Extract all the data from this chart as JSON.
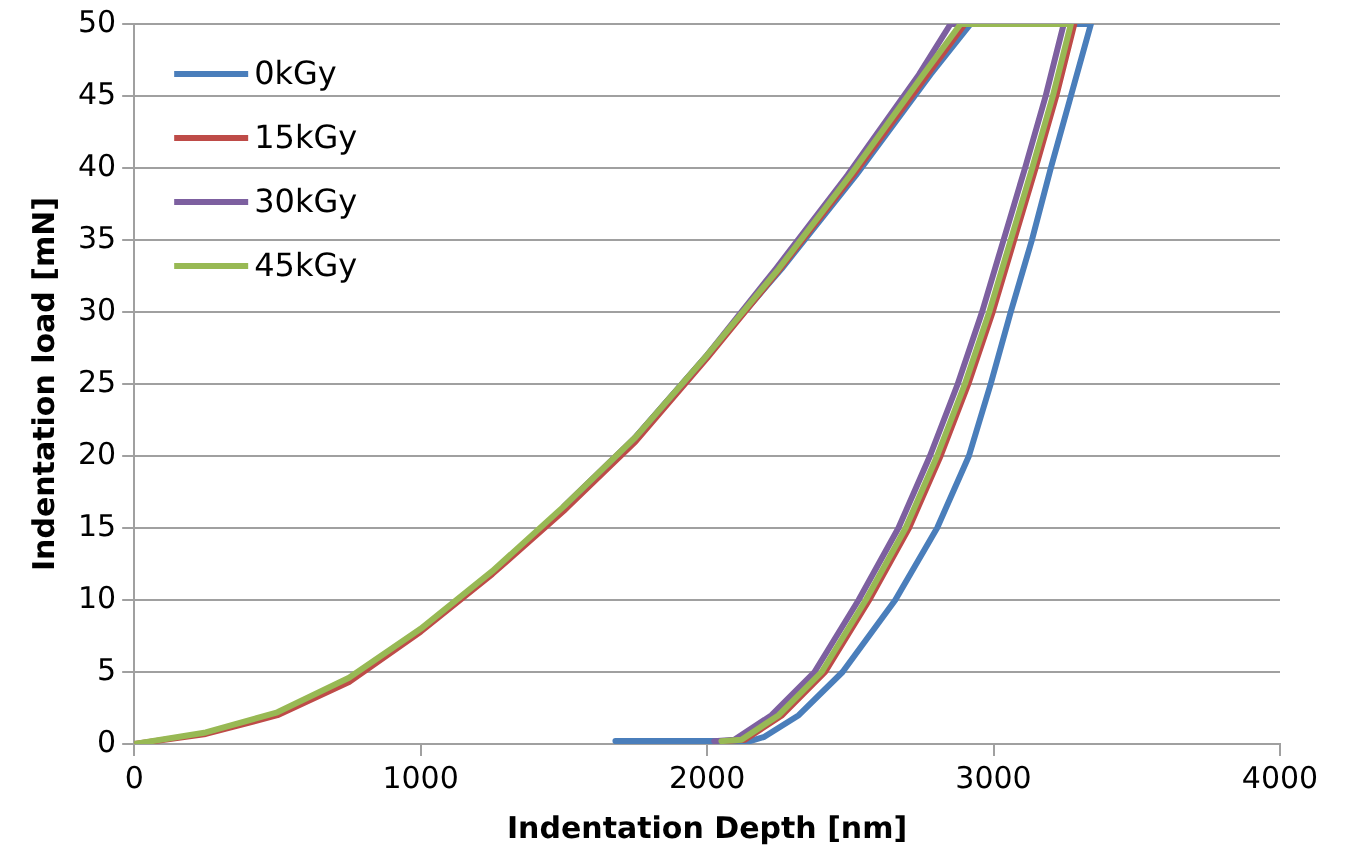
{
  "chart_data": {
    "type": "line",
    "xlabel": "Indentation Depth [nm]",
    "ylabel": "Indentation load [mN]",
    "xlim": [
      0,
      4000
    ],
    "xticks": [
      0,
      1000,
      2000,
      3000,
      4000
    ],
    "ylim": [
      0,
      50
    ],
    "yticks": [
      0,
      5,
      10,
      15,
      20,
      25,
      30,
      35,
      40,
      45,
      50
    ],
    "grid": "y",
    "legend": "top left",
    "marker": "none",
    "line_style": "solid",
    "series": [
      {
        "name": "0kGy",
        "color": "#4a7ebb",
        "x": [
          1750,
          2000,
          2260,
          2520,
          2780,
          2920,
          3340,
          3270,
          3200,
          3134,
          3060,
          2990,
          2914,
          2803,
          2657,
          2473,
          2320,
          2200,
          2150,
          1680
        ],
        "values": [
          21.3,
          27,
          33,
          39.5,
          46.5,
          50,
          50,
          45,
          40,
          35,
          30,
          25,
          20,
          15,
          10,
          5,
          2,
          0.5,
          0.2,
          0.2
        ]
      },
      {
        "name": "15kGy",
        "color": "#be4b48",
        "x": [
          0,
          250,
          500,
          750,
          1000,
          1250,
          1500,
          1750,
          2000,
          2255,
          2510,
          2770,
          2900,
          3282,
          3219,
          3147,
          3072,
          2997,
          2912,
          2815,
          2705,
          2566,
          2412,
          2262,
          2132,
          2062
        ],
        "values": [
          0,
          0.7,
          2,
          4.3,
          7.8,
          11.8,
          16.2,
          21,
          26.8,
          33,
          39.5,
          46.5,
          50,
          50,
          45,
          40,
          35,
          30,
          25,
          20,
          15,
          10,
          5,
          2,
          0.3,
          0.2
        ]
      },
      {
        "name": "30kGy",
        "color": "#7d60a0",
        "x": [
          1500,
          1750,
          2000,
          2240,
          2490,
          2740,
          2850,
          3245,
          3182,
          3110,
          3035,
          2960,
          2875,
          2778,
          2668,
          2529,
          2375,
          2225,
          2095,
          2025
        ],
        "values": [
          16.5,
          21.3,
          27,
          33,
          39.5,
          46.5,
          50,
          50,
          45,
          40,
          35,
          30,
          25,
          20,
          15,
          10,
          5,
          2,
          0.3,
          0.2
        ]
      },
      {
        "name": "45kGy",
        "color": "#98b954",
        "x": [
          0,
          250,
          500,
          750,
          1000,
          1250,
          1500,
          1750,
          2000,
          2250,
          2500,
          2755,
          2885,
          3270,
          3207,
          3135,
          3060,
          2985,
          2900,
          2803,
          2693,
          2554,
          2400,
          2250,
          2120,
          2050
        ],
        "values": [
          0,
          0.8,
          2.2,
          4.6,
          8,
          12,
          16.5,
          21.3,
          27,
          33,
          39.5,
          46.5,
          50,
          50,
          45,
          40,
          35,
          30,
          25,
          20,
          15,
          10,
          5,
          2,
          0.3,
          0.2
        ]
      }
    ]
  }
}
